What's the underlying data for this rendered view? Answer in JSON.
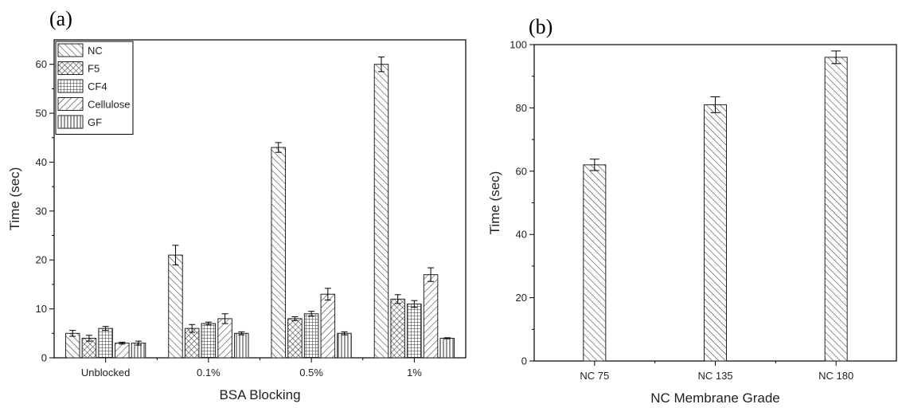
{
  "panel_a": {
    "letter": "(a)"
  },
  "panel_b": {
    "letter": "(b)"
  },
  "chart_data": [
    {
      "type": "bar",
      "panel": "(a)",
      "xlabel": "BSA Blocking",
      "ylabel": "Time (sec)",
      "ylim": [
        0,
        65
      ],
      "yticks": [
        0,
        10,
        20,
        30,
        40,
        50,
        60
      ],
      "grid": false,
      "legend_position": "top-left",
      "categories": [
        "Unblocked",
        "0.1%",
        "0.5%",
        "1%"
      ],
      "series": [
        {
          "name": "NC",
          "pattern": "diagonal-hatch",
          "values": [
            5,
            21,
            43,
            60
          ],
          "errors": [
            0.6,
            2.0,
            1.0,
            1.5
          ]
        },
        {
          "name": "F5",
          "pattern": "crosshatch",
          "values": [
            4,
            6,
            8,
            12
          ],
          "errors": [
            0.6,
            0.8,
            0.4,
            0.9
          ]
        },
        {
          "name": "CF4",
          "pattern": "grid",
          "values": [
            6,
            7,
            9,
            11
          ],
          "errors": [
            0.4,
            0.3,
            0.5,
            0.7
          ]
        },
        {
          "name": "Cellulose",
          "pattern": "back-diagonal-hatch",
          "values": [
            3,
            8,
            13,
            17
          ],
          "errors": [
            0.2,
            1.0,
            1.2,
            1.4
          ]
        },
        {
          "name": "GF",
          "pattern": "vertical-lines",
          "values": [
            3,
            5,
            5,
            4
          ],
          "errors": [
            0.4,
            0.3,
            0.3,
            0.1
          ]
        }
      ]
    },
    {
      "type": "bar",
      "panel": "(b)",
      "xlabel": "NC Membrane Grade",
      "ylabel": "Time (sec)",
      "ylim": [
        0,
        100
      ],
      "yticks": [
        0,
        20,
        40,
        60,
        80,
        100
      ],
      "grid": false,
      "categories": [
        "NC 75",
        "NC 135",
        "NC 180"
      ],
      "values": [
        62,
        81,
        96
      ],
      "errors": [
        1.8,
        2.5,
        2.0
      ],
      "pattern": "diagonal-hatch"
    }
  ]
}
